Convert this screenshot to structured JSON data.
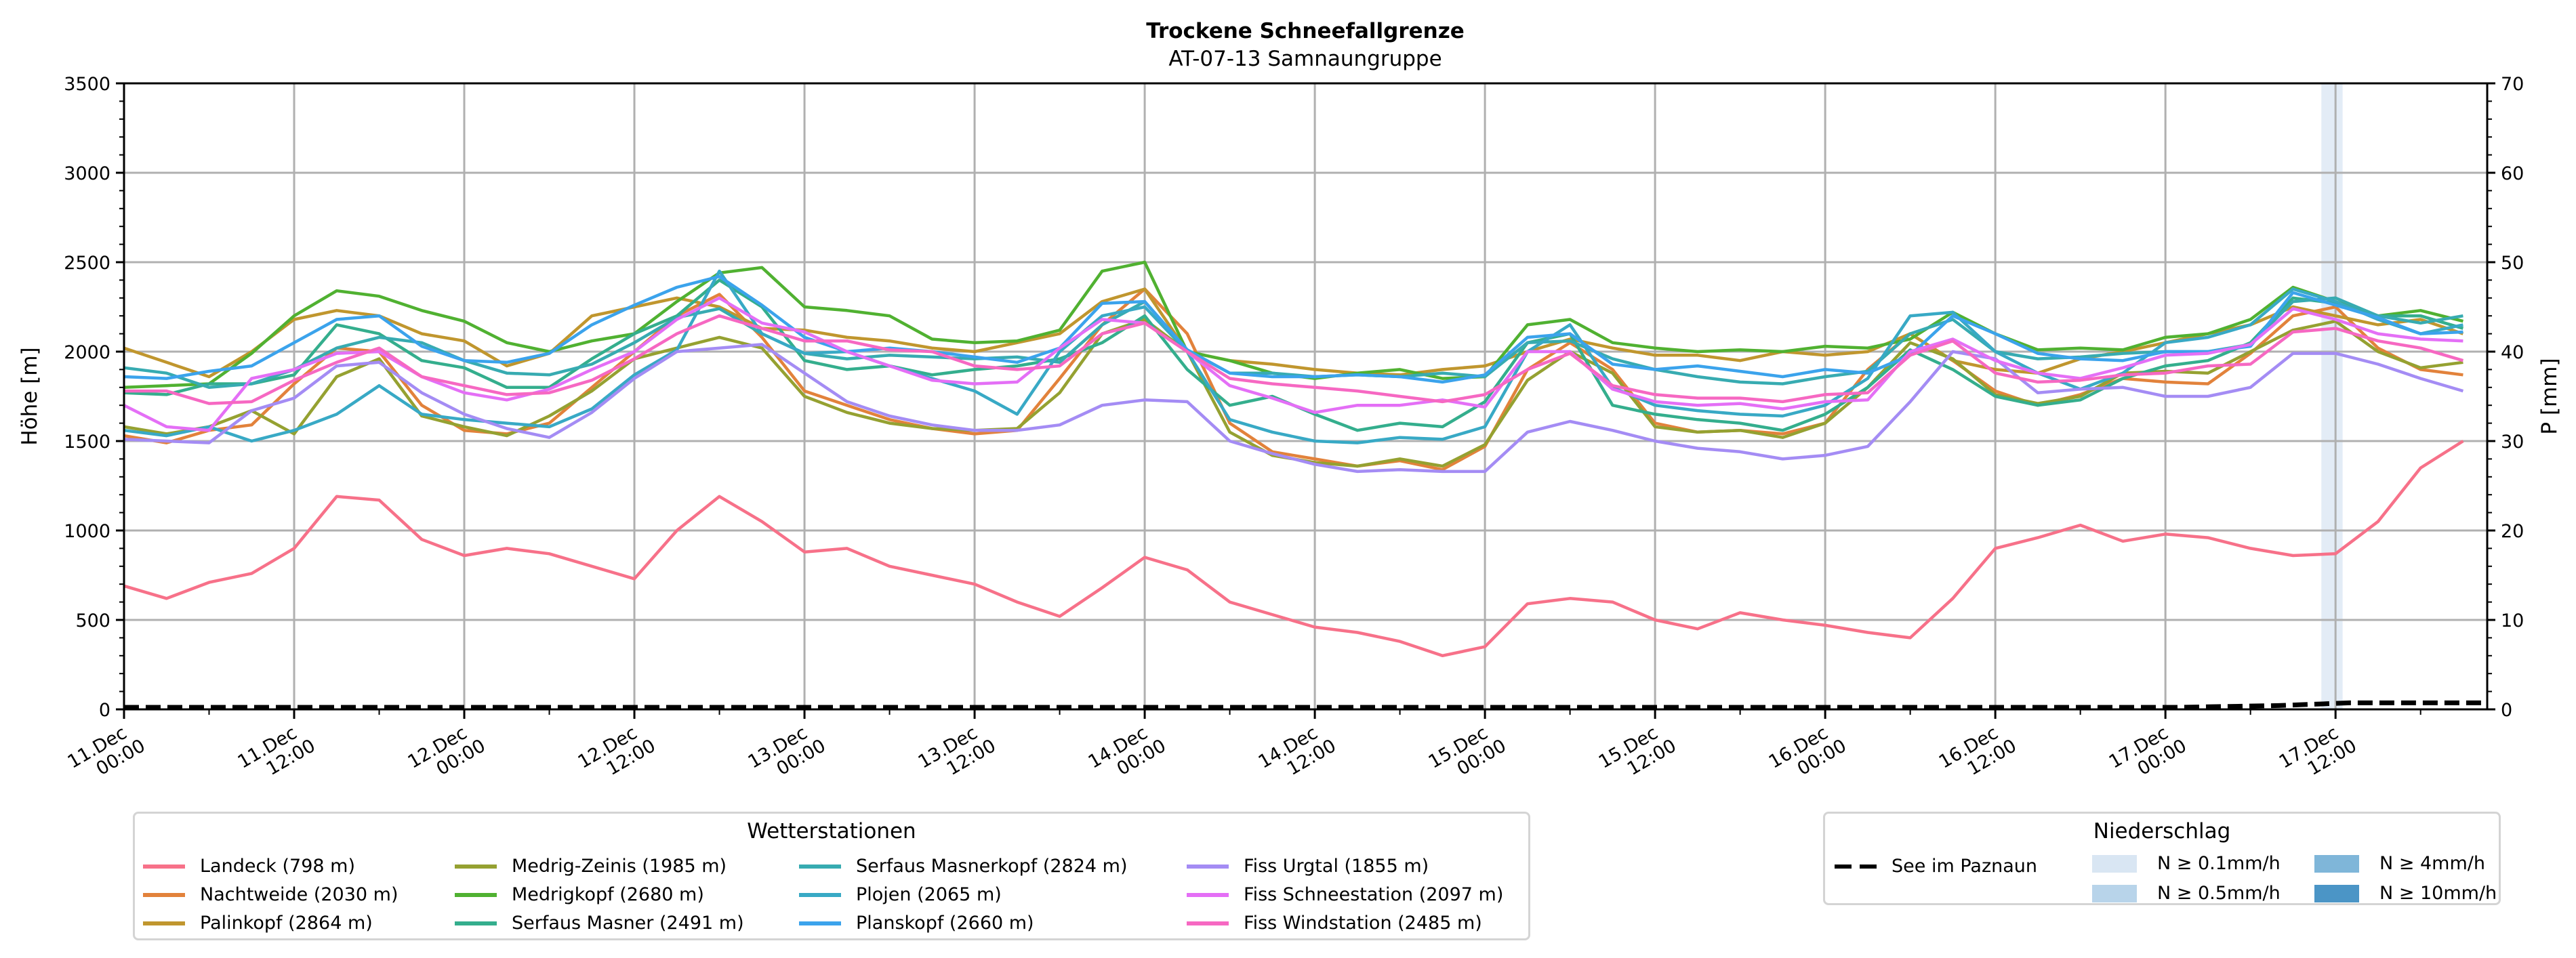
{
  "chart_data": {
    "type": "line",
    "title": "Trockene Schneefallgrenze",
    "subtitle": "AT-07-13 Samnaungruppe",
    "ylabel": "Höhe [m]",
    "y2label": "P [mm]",
    "ylim": [
      0,
      3500
    ],
    "y2lim": [
      0,
      70
    ],
    "yticks": [
      "0",
      "500",
      "1000",
      "1500",
      "2000",
      "2500",
      "3000",
      "3500"
    ],
    "y2ticks": [
      "0",
      "10",
      "20",
      "30",
      "40",
      "50",
      "60",
      "70"
    ],
    "grid": true,
    "x_unit": "hours since 11.Dec 00:00",
    "xlim": [
      0,
      166.7
    ],
    "x_step_hours": 3,
    "xticks": [
      {
        "hour": 0,
        "line1": "11.Dec",
        "line2": "00:00"
      },
      {
        "hour": 12,
        "line1": "11.Dec",
        "line2": "12:00"
      },
      {
        "hour": 24,
        "line1": "12.Dec",
        "line2": "00:00"
      },
      {
        "hour": 36,
        "line1": "12.Dec",
        "line2": "12:00"
      },
      {
        "hour": 48,
        "line1": "13.Dec",
        "line2": "00:00"
      },
      {
        "hour": 60,
        "line1": "13.Dec",
        "line2": "12:00"
      },
      {
        "hour": 72,
        "line1": "14.Dec",
        "line2": "00:00"
      },
      {
        "hour": 84,
        "line1": "14.Dec",
        "line2": "12:00"
      },
      {
        "hour": 96,
        "line1": "15.Dec",
        "line2": "00:00"
      },
      {
        "hour": 108,
        "line1": "15.Dec",
        "line2": "12:00"
      },
      {
        "hour": 120,
        "line1": "16.Dec",
        "line2": "00:00"
      },
      {
        "hour": 132,
        "line1": "16.Dec",
        "line2": "12:00"
      },
      {
        "hour": 144,
        "line1": "17.Dec",
        "line2": "00:00"
      },
      {
        "hour": 156,
        "line1": "17.Dec",
        "line2": "12:00"
      }
    ],
    "series": [
      {
        "name": "Landeck (798 m)",
        "color": "#f77189",
        "values": [
          690,
          620,
          710,
          760,
          900,
          1190,
          1170,
          950,
          860,
          900,
          870,
          800,
          730,
          1000,
          1190,
          1050,
          880,
          900,
          800,
          750,
          700,
          600,
          520,
          680,
          850,
          780,
          600,
          530,
          460,
          430,
          380,
          300,
          350,
          590,
          620,
          600,
          500,
          450,
          540,
          500,
          470,
          430,
          400,
          620,
          900,
          960,
          1030,
          940,
          980,
          960,
          900,
          860,
          870,
          1050,
          1350,
          1500
        ]
      },
      {
        "name": "Nachtweide (2030 m)",
        "color": "#e2823b",
        "values": [
          1530,
          1490,
          1560,
          1590,
          1820,
          2020,
          2000,
          1700,
          1560,
          1540,
          1600,
          1800,
          2000,
          2200,
          2320,
          2080,
          1780,
          1700,
          1620,
          1570,
          1540,
          1560,
          1850,
          2150,
          2350,
          2100,
          1600,
          1440,
          1400,
          1360,
          1390,
          1340,
          1470,
          1900,
          2050,
          1900,
          1600,
          1550,
          1560,
          1540,
          1600,
          1900,
          2100,
          1950,
          1780,
          1700,
          1760,
          1850,
          1830,
          1820,
          1990,
          2200,
          2250,
          2020,
          1900,
          1870
        ]
      },
      {
        "name": "Palinkopf (2864 m)",
        "color": "#c0962e",
        "values": [
          2020,
          1940,
          1860,
          2000,
          2180,
          2230,
          2200,
          2100,
          2060,
          1920,
          1990,
          2200,
          2250,
          2300,
          2250,
          2130,
          2120,
          2080,
          2060,
          2020,
          2000,
          2050,
          2100,
          2280,
          2350,
          2000,
          1950,
          1930,
          1900,
          1880,
          1870,
          1900,
          1920,
          2000,
          2070,
          2020,
          1980,
          1980,
          1950,
          2000,
          1980,
          2000,
          2100,
          1950,
          1900,
          1880,
          1960,
          2000,
          2050,
          2100,
          2150,
          2250,
          2200,
          2150,
          2180,
          2100
        ]
      },
      {
        "name": "Medrig-Zeinis (1985 m)",
        "color": "#95a131",
        "values": [
          1580,
          1540,
          1580,
          1670,
          1540,
          1860,
          1960,
          1640,
          1580,
          1530,
          1640,
          1780,
          1960,
          2020,
          2080,
          2020,
          1750,
          1660,
          1600,
          1570,
          1560,
          1570,
          1770,
          2100,
          2180,
          2000,
          1550,
          1420,
          1380,
          1360,
          1400,
          1360,
          1480,
          1840,
          2000,
          1880,
          1580,
          1550,
          1560,
          1520,
          1600,
          1800,
          2050,
          1960,
          1760,
          1710,
          1750,
          1880,
          1890,
          1880,
          2000,
          2120,
          2170,
          2000,
          1910,
          1940
        ]
      },
      {
        "name": "Medrigkopf (2680 m)",
        "color": "#50b131",
        "values": [
          1800,
          1810,
          1820,
          1990,
          2200,
          2340,
          2310,
          2230,
          2170,
          2050,
          2000,
          2060,
          2100,
          2280,
          2440,
          2470,
          2250,
          2230,
          2200,
          2070,
          2050,
          2060,
          2120,
          2450,
          2500,
          2000,
          1950,
          1880,
          1850,
          1880,
          1900,
          1850,
          1860,
          2150,
          2180,
          2050,
          2020,
          2000,
          2010,
          2000,
          2030,
          2020,
          2070,
          2220,
          2100,
          2010,
          2020,
          2010,
          2080,
          2100,
          2180,
          2360,
          2280,
          2200,
          2230,
          2170
        ]
      },
      {
        "name": "Serfaus Masner (2491 m)",
        "color": "#34ae8d",
        "values": [
          1770,
          1760,
          1820,
          1820,
          1870,
          2150,
          2100,
          1950,
          1910,
          1800,
          1800,
          1960,
          2100,
          2200,
          2400,
          2250,
          1950,
          1900,
          1920,
          1870,
          1900,
          1920,
          1960,
          2050,
          2200,
          1900,
          1700,
          1750,
          1650,
          1560,
          1600,
          1580,
          1720,
          2050,
          2100,
          1700,
          1650,
          1620,
          1600,
          1560,
          1650,
          1800,
          2010,
          1900,
          1750,
          1700,
          1730,
          1850,
          1920,
          1950,
          2050,
          2300,
          2270,
          2200,
          2200,
          2130
        ]
      },
      {
        "name": "Serfaus Masnerkopf (2824 m)",
        "color": "#37abb1",
        "values": [
          1910,
          1880,
          1800,
          1820,
          1900,
          2020,
          2080,
          2050,
          1950,
          1880,
          1870,
          1930,
          2050,
          2190,
          2240,
          2100,
          1990,
          1960,
          1980,
          1970,
          1960,
          1970,
          1940,
          2150,
          2280,
          2010,
          1880,
          1880,
          1860,
          1870,
          1860,
          1880,
          1860,
          2050,
          2060,
          1960,
          1900,
          1860,
          1830,
          1820,
          1860,
          1890,
          2100,
          2180,
          2000,
          1960,
          1970,
          1990,
          2000,
          2000,
          2040,
          2280,
          2300,
          2200,
          2160,
          2200
        ]
      },
      {
        "name": "Plojen (2065 m)",
        "color": "#38a9c5",
        "values": [
          1560,
          1530,
          1580,
          1500,
          1560,
          1650,
          1810,
          1650,
          1620,
          1600,
          1580,
          1680,
          1870,
          2010,
          2450,
          2100,
          1990,
          2000,
          1920,
          1850,
          1780,
          1650,
          2000,
          2200,
          2250,
          2000,
          1620,
          1550,
          1500,
          1490,
          1520,
          1510,
          1580,
          2000,
          2150,
          1800,
          1700,
          1670,
          1650,
          1640,
          1700,
          1850,
          2200,
          2220,
          2000,
          1880,
          1790,
          1880,
          2050,
          2080,
          2150,
          2350,
          2280,
          2180,
          2100,
          2150
        ]
      },
      {
        "name": "Planskopf (2660 m)",
        "color": "#3ba3ec",
        "values": [
          1860,
          1850,
          1890,
          1920,
          2050,
          2180,
          2200,
          2030,
          1950,
          1940,
          1990,
          2150,
          2260,
          2360,
          2420,
          2260,
          2080,
          2000,
          2020,
          2000,
          1970,
          1940,
          2020,
          2270,
          2280,
          2010,
          1880,
          1860,
          1860,
          1870,
          1860,
          1830,
          1870,
          2080,
          2100,
          1930,
          1900,
          1920,
          1890,
          1860,
          1900,
          1880,
          1980,
          2200,
          2100,
          1990,
          1960,
          1950,
          2000,
          2000,
          2030,
          2330,
          2260,
          2190,
          2100,
          2110
        ]
      },
      {
        "name": "Fiss Urgtal  (1855 m)",
        "color": "#a48cf4",
        "values": [
          1510,
          1500,
          1490,
          1670,
          1740,
          1920,
          1940,
          1770,
          1650,
          1570,
          1520,
          1660,
          1850,
          2000,
          2020,
          2040,
          1880,
          1720,
          1640,
          1590,
          1560,
          1560,
          1590,
          1700,
          1730,
          1720,
          1500,
          1430,
          1370,
          1330,
          1340,
          1330,
          1330,
          1550,
          1610,
          1560,
          1500,
          1460,
          1440,
          1400,
          1420,
          1470,
          1720,
          2000,
          1960,
          1770,
          1790,
          1800,
          1750,
          1750,
          1800,
          1990,
          1990,
          1930,
          1850,
          1780
        ]
      },
      {
        "name": "Fiss Schneestation (2097 m)",
        "color": "#e46ff6",
        "values": [
          1700,
          1580,
          1560,
          1850,
          1900,
          1990,
          2000,
          1860,
          1770,
          1730,
          1790,
          1900,
          2000,
          2180,
          2300,
          2160,
          2110,
          2000,
          1920,
          1840,
          1820,
          1830,
          2020,
          2180,
          2160,
          2000,
          1810,
          1740,
          1660,
          1700,
          1700,
          1730,
          1690,
          2000,
          2000,
          1790,
          1720,
          1700,
          1710,
          1680,
          1720,
          1730,
          2000,
          2070,
          1950,
          1880,
          1850,
          1910,
          1980,
          1990,
          2040,
          2240,
          2180,
          2100,
          2070,
          2060
        ]
      },
      {
        "name": "Fiss Windstation (2485 m)",
        "color": "#f668c2",
        "values": [
          1780,
          1780,
          1710,
          1720,
          1840,
          1940,
          2020,
          1860,
          1810,
          1760,
          1770,
          1840,
          1960,
          2100,
          2200,
          2130,
          2060,
          2060,
          2010,
          2000,
          1920,
          1900,
          1920,
          2100,
          2160,
          2000,
          1850,
          1820,
          1800,
          1780,
          1750,
          1720,
          1760,
          1900,
          1990,
          1810,
          1760,
          1740,
          1740,
          1720,
          1760,
          1770,
          1980,
          2060,
          1880,
          1830,
          1840,
          1870,
          1880,
          1920,
          1930,
          2110,
          2130,
          2060,
          2020,
          1950
        ]
      }
    ],
    "precip_line": {
      "name": "See im Paznaun",
      "color": "#000000",
      "hours": [
        0,
        145,
        152,
        157,
        166.7
      ],
      "values_mm": [
        0,
        0,
        0.2,
        0.5,
        0.5
      ]
    },
    "precip_bands": [
      {
        "start_hour": 155,
        "end_hour": 156.5,
        "class": "N ≥ 0.1mm/h"
      }
    ]
  },
  "legend_stations": {
    "title": "Wetterstationen"
  },
  "legend_precip": {
    "title": "Niederschlag",
    "line_label": "See im Paznaun",
    "classes": [
      {
        "label": "N ≥ 0.1mm/h",
        "color": "#d9e6f3"
      },
      {
        "label": "N ≥ 0.5mm/h",
        "color": "#b8d4ea"
      },
      {
        "label": "N ≥ 4mm/h",
        "color": "#7fb6d9"
      },
      {
        "label": "N ≥ 10mm/h",
        "color": "#4b95c6"
      }
    ]
  }
}
